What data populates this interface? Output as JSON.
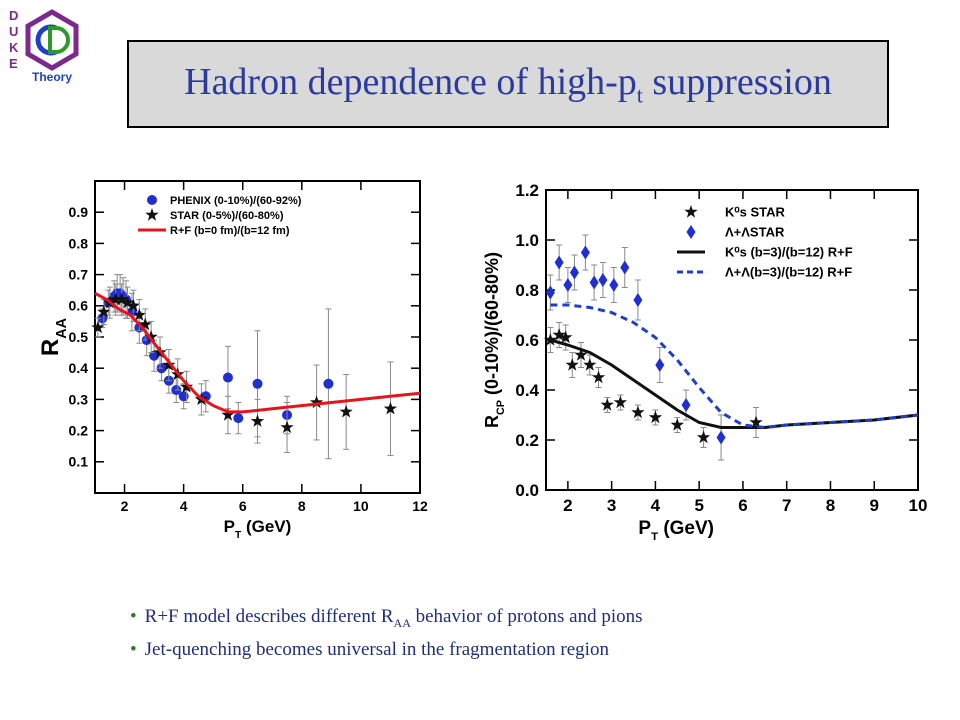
{
  "logo": {
    "letters": [
      "D",
      "U",
      "K",
      "E"
    ],
    "word": "Theory"
  },
  "title": {
    "main": "Hadron dependence of high-p",
    "sub": "t",
    "tail": " suppression"
  },
  "bullets": [
    {
      "pre": "R+F model describes different R",
      "sub": "AA",
      "post": " behavior of protons and pions"
    },
    {
      "pre": "Jet-quenching becomes universal in the fragmentation region",
      "sub": "",
      "post": ""
    }
  ],
  "colors": {
    "title": "#2b3a9e",
    "phenix": "#1f2fd0",
    "star": "#111111",
    "model_red": "#e8141b",
    "model_blue": "#1f3fc8",
    "bullet_text": "#1f2e7a"
  },
  "chart_data": [
    {
      "type": "scatter",
      "xlabel": "P",
      "xlabel_sub": "T",
      "xlabel_tail": " (GeV)",
      "ylabel": "R",
      "ylabel_sub": "AA",
      "xlim": [
        1,
        12
      ],
      "ylim": [
        0,
        1.0
      ],
      "xticks": [
        "2",
        "4",
        "6",
        "8",
        "10",
        "12"
      ],
      "yticks": [
        "0.1",
        "0.2",
        "0.3",
        "0.4",
        "0.5",
        "0.6",
        "0.7",
        "0.8",
        "0.9"
      ],
      "legend": [
        "PHENIX (0-10%)/(60-92%)",
        "STAR (0-5%)/(60-80%)",
        "R+F (b=0 fm)/(b=12 fm)"
      ],
      "series": [
        {
          "name": "PHENIX (0-10%)/(60-92%)",
          "marker": "circle",
          "x": [
            1.25,
            1.45,
            1.65,
            1.75,
            1.85,
            1.95,
            2.05,
            2.25,
            2.5,
            2.75,
            3.0,
            3.25,
            3.5,
            3.75,
            4.0,
            4.75,
            5.5,
            5.85,
            6.5,
            7.5,
            8.9
          ],
          "y": [
            0.56,
            0.61,
            0.63,
            0.64,
            0.64,
            0.63,
            0.62,
            0.58,
            0.53,
            0.49,
            0.44,
            0.4,
            0.36,
            0.33,
            0.31,
            0.31,
            0.37,
            0.24,
            0.35,
            0.25,
            0.35
          ],
          "err": [
            0.03,
            0.04,
            0.05,
            0.06,
            0.06,
            0.06,
            0.06,
            0.06,
            0.05,
            0.05,
            0.05,
            0.04,
            0.04,
            0.04,
            0.04,
            0.05,
            0.1,
            0.05,
            0.17,
            0.06,
            0.24
          ]
        },
        {
          "name": "STAR (0-5%)/(60-80%)",
          "marker": "star",
          "x": [
            1.1,
            1.3,
            1.5,
            1.7,
            1.9,
            2.1,
            2.3,
            2.5,
            2.7,
            2.9,
            3.2,
            3.5,
            3.8,
            4.1,
            4.6,
            5.5,
            6.5,
            7.5,
            8.5,
            9.5,
            11.0
          ],
          "y": [
            0.53,
            0.58,
            0.61,
            0.62,
            0.62,
            0.61,
            0.6,
            0.57,
            0.54,
            0.5,
            0.45,
            0.41,
            0.38,
            0.34,
            0.3,
            0.25,
            0.23,
            0.21,
            0.29,
            0.26,
            0.27
          ],
          "err": [
            0.03,
            0.04,
            0.05,
            0.05,
            0.05,
            0.05,
            0.05,
            0.05,
            0.05,
            0.05,
            0.05,
            0.05,
            0.05,
            0.05,
            0.05,
            0.06,
            0.07,
            0.08,
            0.12,
            0.12,
            0.15
          ]
        },
        {
          "name": "R+F (b=0 fm)/(b=12 fm)",
          "marker": "line",
          "x": [
            1.0,
            1.4,
            1.8,
            2.2,
            2.6,
            3.0,
            3.5,
            4.0,
            4.5,
            5.0,
            5.5,
            6.0,
            7.0,
            8.0,
            9.0,
            10.0,
            11.0,
            12.0
          ],
          "y": [
            0.64,
            0.62,
            0.59,
            0.57,
            0.53,
            0.48,
            0.42,
            0.36,
            0.31,
            0.28,
            0.26,
            0.26,
            0.27,
            0.28,
            0.29,
            0.3,
            0.31,
            0.32
          ]
        }
      ]
    },
    {
      "type": "scatter",
      "xlabel": "P",
      "xlabel_sub": "T",
      "xlabel_tail": " (GeV)",
      "ylabel": "R",
      "ylabel_sub": "CP",
      "ylabel_tail": " (0-10%)/(60-80%)",
      "xlim": [
        1.5,
        10
      ],
      "ylim": [
        0,
        1.2
      ],
      "xticks": [
        "2",
        "3",
        "4",
        "5",
        "6",
        "7",
        "8",
        "9",
        "10"
      ],
      "yticks": [
        "0.0",
        "0.2",
        "0.4",
        "0.6",
        "0.8",
        "1.0",
        "1.2"
      ],
      "legend": [
        "K⁰s STAR",
        "Λ+ΛSTAR",
        "K⁰s (b=3)/(b=12) R+F",
        "Λ+Λ(b=3)/(b=12) R+F"
      ],
      "series": [
        {
          "name": "K⁰s STAR",
          "marker": "star",
          "x": [
            1.6,
            1.8,
            1.95,
            2.1,
            2.3,
            2.5,
            2.7,
            2.9,
            3.2,
            3.6,
            4.0,
            4.5,
            5.1,
            6.3
          ],
          "y": [
            0.6,
            0.62,
            0.61,
            0.5,
            0.54,
            0.5,
            0.45,
            0.34,
            0.35,
            0.31,
            0.29,
            0.26,
            0.21,
            0.27
          ],
          "err": [
            0.05,
            0.05,
            0.05,
            0.05,
            0.05,
            0.04,
            0.04,
            0.03,
            0.03,
            0.03,
            0.03,
            0.03,
            0.04,
            0.06
          ]
        },
        {
          "name": "Λ+ΛSTAR",
          "marker": "diamond",
          "x": [
            1.6,
            1.8,
            2.0,
            2.15,
            2.4,
            2.6,
            2.8,
            3.05,
            3.3,
            3.6,
            4.1,
            4.7,
            5.5
          ],
          "y": [
            0.79,
            0.91,
            0.82,
            0.87,
            0.95,
            0.83,
            0.84,
            0.82,
            0.89,
            0.76,
            0.5,
            0.34,
            0.21
          ],
          "err": [
            0.07,
            0.07,
            0.07,
            0.07,
            0.07,
            0.07,
            0.07,
            0.07,
            0.08,
            0.08,
            0.07,
            0.06,
            0.09
          ]
        },
        {
          "name": "K⁰s (b=3)/(b=12) R+F",
          "marker": "line",
          "x": [
            1.6,
            2.0,
            2.5,
            3.0,
            3.5,
            4.0,
            4.5,
            5.0,
            5.5,
            6.0,
            6.5,
            7.0,
            8.0,
            9.0,
            10.0
          ],
          "y": [
            0.6,
            0.58,
            0.55,
            0.5,
            0.44,
            0.38,
            0.32,
            0.27,
            0.25,
            0.25,
            0.25,
            0.26,
            0.27,
            0.28,
            0.3
          ]
        },
        {
          "name": "Λ+Λ(b=3)/(b=12) R+F",
          "marker": "dashed",
          "x": [
            1.6,
            2.0,
            2.5,
            3.0,
            3.5,
            4.0,
            4.5,
            5.0,
            5.5,
            6.0,
            6.5,
            7.0,
            8.0,
            9.0,
            10.0
          ],
          "y": [
            0.74,
            0.74,
            0.73,
            0.71,
            0.67,
            0.61,
            0.52,
            0.41,
            0.31,
            0.26,
            0.25,
            0.26,
            0.27,
            0.28,
            0.3
          ]
        }
      ]
    }
  ]
}
